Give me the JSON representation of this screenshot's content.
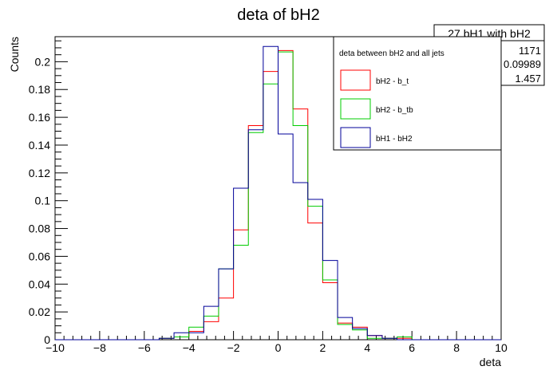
{
  "chart_data": {
    "type": "histogram",
    "title": "deta of bH2",
    "xlabel": "deta",
    "ylabel": "Counts",
    "xlim": [
      -10,
      10
    ],
    "ylim": [
      0,
      0.218
    ],
    "x_ticks": [
      "−10",
      "−8",
      "−6",
      "−4",
      "−2",
      "0",
      "2",
      "4",
      "6",
      "8",
      "10"
    ],
    "y_ticks": [
      "0",
      "0.02",
      "0.04",
      "0.06",
      "0.08",
      "0.1",
      "0.12",
      "0.14",
      "0.16",
      "0.18",
      "0.2"
    ],
    "x_tick_values": [
      -10,
      -8,
      -6,
      -4,
      -2,
      0,
      2,
      4,
      6,
      8,
      10
    ],
    "y_tick_values": [
      0,
      0.02,
      0.04,
      0.06,
      0.08,
      0.1,
      0.12,
      0.14,
      0.16,
      0.18,
      0.2
    ],
    "bin_edges": [
      -10,
      -9.333,
      -8.667,
      -8,
      -7.333,
      -6.667,
      -6,
      -5.333,
      -4.667,
      -4,
      -3.333,
      -2.667,
      -2,
      -1.333,
      -0.667,
      0,
      0.667,
      1.333,
      2,
      2.667,
      3.333,
      4,
      4.667,
      5.333,
      6,
      6.667,
      7.333,
      8,
      8.667,
      9.333,
      10
    ],
    "series": [
      {
        "name": "bH2 - b_t",
        "color": "#ff0000",
        "values": [
          0,
          0,
          0,
          0,
          0,
          0,
          0,
          0.001,
          0.002,
          0.006,
          0.013,
          0.03,
          0.079,
          0.154,
          0.193,
          0.208,
          0.166,
          0.084,
          0.041,
          0.012,
          0.009,
          0.003,
          0.001,
          0.001,
          0,
          0,
          0,
          0,
          0,
          0
        ]
      },
      {
        "name": "bH2 - b_tb",
        "color": "#00cc00",
        "values": [
          0,
          0,
          0,
          0,
          0,
          0,
          0,
          0.001,
          0.002,
          0.009,
          0.017,
          0.051,
          0.068,
          0.149,
          0.184,
          0.207,
          0.154,
          0.096,
          0.043,
          0.011,
          0.007,
          0.001,
          0.001,
          0.002,
          0,
          0,
          0,
          0,
          0,
          0
        ]
      },
      {
        "name": "bH1 - bH2",
        "color": "#000099",
        "values": [
          0,
          0,
          0,
          0,
          0,
          0,
          0,
          0.001,
          0.005,
          0.005,
          0.024,
          0.051,
          0.109,
          0.151,
          0.211,
          0.148,
          0.113,
          0.101,
          0.057,
          0.016,
          0.008,
          0.003,
          0.001,
          0,
          0,
          0,
          0,
          0,
          0,
          0
        ]
      }
    ],
    "legend_title": "deta between bH2 and all jets",
    "legend_position": "top-right",
    "stats_box": {
      "title": "27 bH1 with bH2",
      "values": [
        "1171",
        "0.09989",
        "1.457"
      ]
    }
  }
}
